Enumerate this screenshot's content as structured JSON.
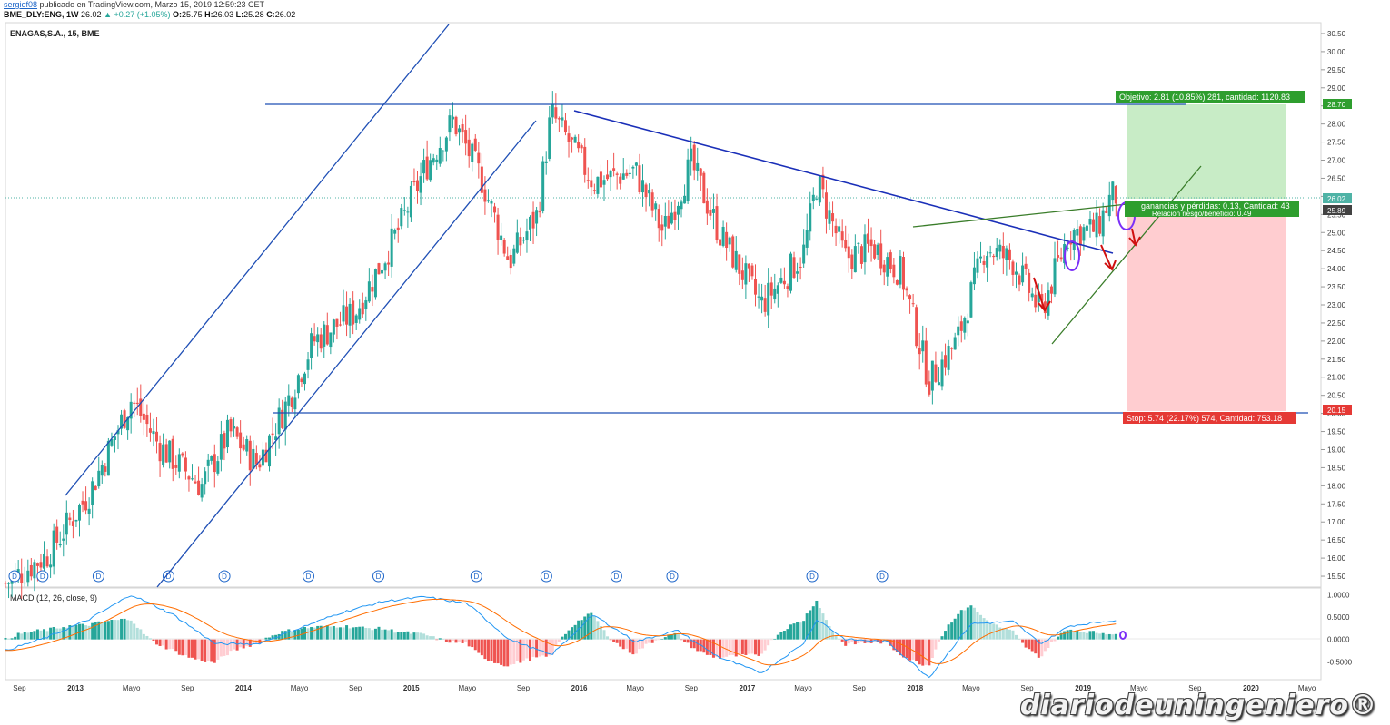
{
  "header": {
    "author": "sergiof08",
    "published": "publicado en TradingView.com, Marzo 15, 2019 12:59:23 CET",
    "symbol": "BME_DLY:ENG, 1W",
    "last": "26.02",
    "change": "▲ +0.27 (+1.05%)",
    "o_label": "O:",
    "o": "25.75",
    "h_label": "H:",
    "h": "26.03",
    "l_label": "L:",
    "l": "25.28",
    "c_label": "C:",
    "c": "26.02"
  },
  "chart_data": [
    {
      "type": "candlestick",
      "title": "ENAGAS,S.A., 15, BME",
      "ylim": [
        15.2,
        30.8
      ],
      "y_ticks": [
        "30.50",
        "30.00",
        "29.50",
        "29.00",
        "28.50",
        "28.00",
        "27.50",
        "27.00",
        "26.50",
        "26.00",
        "25.50",
        "25.00",
        "24.50",
        "24.00",
        "23.50",
        "23.00",
        "22.50",
        "22.00",
        "21.50",
        "21.00",
        "20.50",
        "20.00",
        "19.50",
        "19.00",
        "18.50",
        "18.00",
        "17.50",
        "17.00",
        "16.50",
        "16.00",
        "15.50"
      ],
      "x_ticks": [
        "Sep",
        "2013",
        "Mayo",
        "Sep",
        "2014",
        "Mayo",
        "Sep",
        "2015",
        "Mayo",
        "Sep",
        "2016",
        "Mayo",
        "Sep",
        "2017",
        "Mayo",
        "Sep",
        "2018",
        "Mayo",
        "Sep",
        "2019",
        "Mayo",
        "Sep",
        "2020",
        "Mayo"
      ],
      "x_range": [
        "2012-08",
        "2020-06"
      ],
      "close_path_approx": [
        [
          "2012-08",
          15.3
        ],
        [
          "2012-11",
          16.1
        ],
        [
          "2013-02",
          17.8
        ],
        [
          "2013-05",
          20.4
        ],
        [
          "2013-07",
          19.1
        ],
        [
          "2013-10",
          18.0
        ],
        [
          "2013-12",
          19.5
        ],
        [
          "2014-02",
          18.6
        ],
        [
          "2014-04",
          20.2
        ],
        [
          "2014-06",
          22.0
        ],
        [
          "2014-09",
          22.8
        ],
        [
          "2014-12",
          25.0
        ],
        [
          "2015-02",
          26.8
        ],
        [
          "2015-04",
          28.1
        ],
        [
          "2015-06",
          26.5
        ],
        [
          "2015-08",
          24.2
        ],
        [
          "2015-10",
          25.5
        ],
        [
          "2015-11",
          28.3
        ],
        [
          "2016-02",
          26.4
        ],
        [
          "2016-05",
          26.7
        ],
        [
          "2016-07",
          25.0
        ],
        [
          "2016-09",
          26.9
        ],
        [
          "2016-11",
          25.0
        ],
        [
          "2017-02",
          23.0
        ],
        [
          "2017-05",
          24.4
        ],
        [
          "2017-06",
          26.4
        ],
        [
          "2017-08",
          24.3
        ],
        [
          "2017-10",
          24.6
        ],
        [
          "2017-12",
          23.9
        ],
        [
          "2018-02",
          20.9
        ],
        [
          "2018-04",
          22.0
        ],
        [
          "2018-06",
          24.6
        ],
        [
          "2018-08",
          24.2
        ],
        [
          "2018-10",
          22.8
        ],
        [
          "2018-12",
          25.0
        ],
        [
          "2019-02",
          25.1
        ],
        [
          "2019-03",
          26.02
        ]
      ],
      "current_price": "26.02",
      "price_tag_2": "25.89",
      "dividend_marker": "D",
      "dividend_dates": [
        "2012-08",
        "2012-10",
        "2013-02",
        "2013-07",
        "2013-11",
        "2014-05",
        "2014-10",
        "2015-05",
        "2015-10",
        "2016-03",
        "2016-07",
        "2017-05",
        "2017-10"
      ],
      "annotations": {
        "target_price": "28.70",
        "stop_price": "20.15",
        "target_text": "Objetivo: 2.81 (10.85%) 281, cantidad: 1120.83",
        "pl_text": "ganancias y pérdidas: 0.13, Cantidad: 43",
        "rr_text": "Relación riesgo/beneficio: 0.49",
        "stop_text": "Stop: 5.74 (22.17%) 574, Cantidad: 753.18"
      }
    },
    {
      "type": "macd",
      "title": "MACD (12, 26, close, 9)",
      "ylim": [
        -0.9,
        1.15
      ],
      "y_ticks": [
        "1.0000",
        "0.5000",
        "0.0000",
        "-0.5000"
      ],
      "series": [
        {
          "name": "MACD",
          "color": "#2196f3"
        },
        {
          "name": "Signal",
          "color": "#ff6d00"
        }
      ],
      "histogram_colors": {
        "pos_up": "#26a69a",
        "pos_down": "#b2dfdb",
        "neg_down": "#ef5350",
        "neg_up": "#ffcdd2"
      },
      "macd_path_approx": [
        [
          "2012-08",
          -0.25
        ],
        [
          "2012-11",
          0.05
        ],
        [
          "2013-02",
          0.45
        ],
        [
          "2013-05",
          1.0
        ],
        [
          "2013-08",
          0.55
        ],
        [
          "2013-11",
          -0.1
        ],
        [
          "2014-02",
          -0.1
        ],
        [
          "2014-05",
          0.25
        ],
        [
          "2014-08",
          0.6
        ],
        [
          "2014-11",
          0.85
        ],
        [
          "2015-02",
          0.95
        ],
        [
          "2015-05",
          0.8
        ],
        [
          "2015-08",
          0.0
        ],
        [
          "2015-11",
          -0.35
        ],
        [
          "2016-02",
          0.55
        ],
        [
          "2016-05",
          -0.05
        ],
        [
          "2016-08",
          0.2
        ],
        [
          "2016-11",
          -0.4
        ],
        [
          "2017-02",
          -0.75
        ],
        [
          "2017-05",
          -0.1
        ],
        [
          "2017-06",
          0.45
        ],
        [
          "2017-08",
          0.0
        ],
        [
          "2017-11",
          -0.05
        ],
        [
          "2018-02",
          -0.85
        ],
        [
          "2018-05",
          0.35
        ],
        [
          "2018-08",
          0.4
        ],
        [
          "2018-10",
          -0.1
        ],
        [
          "2018-12",
          0.3
        ],
        [
          "2019-03",
          0.42
        ]
      ]
    }
  ],
  "colors": {
    "bull": "#26a69a",
    "bear": "#ef5350",
    "trend_line": "#1f4fb5",
    "wedge_line": "#2e7d32",
    "target_zone": "#c8ecc6",
    "stop_zone": "#ffcdd0",
    "target_label": "#2e9e2e",
    "stop_label": "#e53935",
    "current_price_tag": "#4fb3a6",
    "price_tag_2": "#424242"
  },
  "watermark": "diariodeuningeniero®"
}
